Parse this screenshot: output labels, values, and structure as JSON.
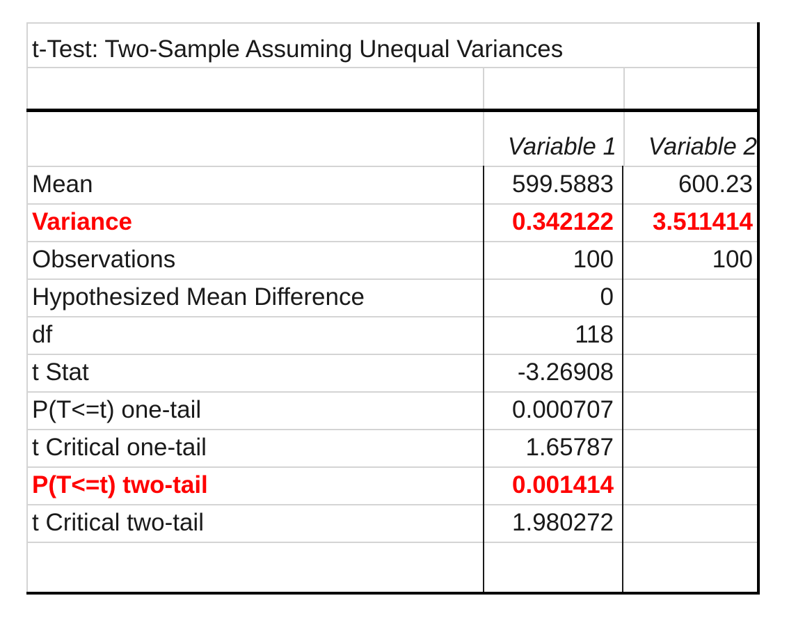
{
  "title": "t-Test: Two-Sample Assuming Unequal Variances",
  "columns": {
    "variable_1": "Variable 1",
    "variable_2": "Variable 2"
  },
  "highlight_color": "#ff0000",
  "rows": [
    {
      "label": "Mean",
      "v1": "599.5883",
      "v2": "600.23",
      "highlight": false
    },
    {
      "label": "Variance",
      "v1": "0.342122",
      "v2": "3.511414",
      "highlight": true
    },
    {
      "label": "Observations",
      "v1": "100",
      "v2": "100",
      "highlight": false
    },
    {
      "label": "Hypothesized Mean Difference",
      "v1": "0",
      "v2": "",
      "highlight": false
    },
    {
      "label": "df",
      "v1": "118",
      "v2": "",
      "highlight": false
    },
    {
      "label": "t Stat",
      "v1": "-3.26908",
      "v2": "",
      "highlight": false
    },
    {
      "label": "P(T<=t) one-tail",
      "v1": "0.000707",
      "v2": "",
      "highlight": false
    },
    {
      "label": "t Critical one-tail",
      "v1": "1.65787",
      "v2": "",
      "highlight": false
    },
    {
      "label": "P(T<=t) two-tail",
      "v1": "0.001414",
      "v2": "",
      "highlight": true
    },
    {
      "label": "t Critical two-tail",
      "v1": "1.980272",
      "v2": "",
      "highlight": false
    }
  ]
}
